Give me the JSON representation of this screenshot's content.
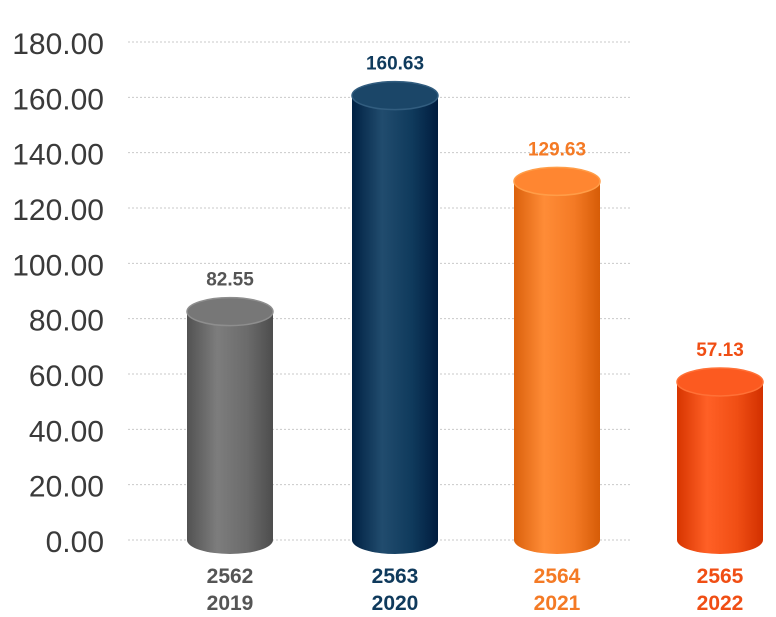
{
  "chart_data": {
    "type": "bar",
    "categories": [
      {
        "label_top": "2562",
        "label_bottom": "2019"
      },
      {
        "label_top": "2563",
        "label_bottom": "2020"
      },
      {
        "label_top": "2564",
        "label_bottom": "2021"
      },
      {
        "label_top": "2565",
        "label_bottom": "2022"
      }
    ],
    "values": [
      82.55,
      160.63,
      129.63,
      57.13
    ],
    "value_labels": [
      "82.55",
      "160.63",
      "129.63",
      "57.13"
    ],
    "y_ticks": [
      "0.00",
      "20.00",
      "40.00",
      "60.00",
      "80.00",
      "100.00",
      "120.00",
      "140.00",
      "160.00",
      "180.00"
    ],
    "ylim": [
      0,
      180
    ],
    "grid": true,
    "colors": [
      "#6b6b6b",
      "#0f3a5c",
      "#f47a25",
      "#f04e14"
    ],
    "label_colors": [
      "#555555",
      "#0f3a5c",
      "#f47a25",
      "#f04e14"
    ]
  }
}
